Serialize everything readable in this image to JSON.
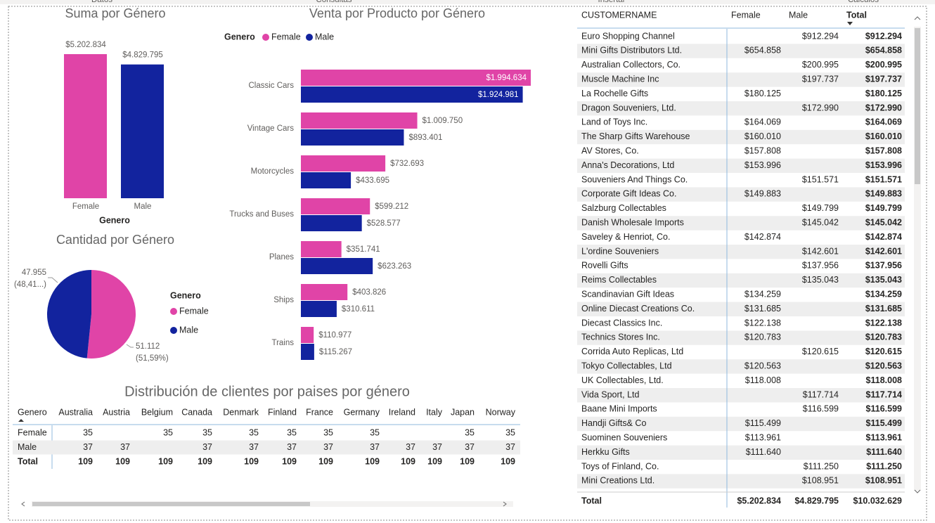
{
  "tabs": [
    "Datos",
    "Consultas",
    "Insertar",
    "Cálculos"
  ],
  "chart_data": [
    {
      "type": "bar",
      "title": "Suma por Género",
      "xlabel": "Genero",
      "categories": [
        "Female",
        "Male"
      ],
      "values": [
        5202834,
        4829795
      ],
      "value_labels": [
        "$5.202.834",
        "$4.829.795"
      ],
      "colors": [
        "#e044a7",
        "#12239e"
      ]
    },
    {
      "type": "pie",
      "title": "Cantidad por Género",
      "legend_title": "Genero",
      "categories": [
        "Female",
        "Male"
      ],
      "values": [
        51112,
        47955
      ],
      "value_labels": [
        "51.112",
        "47.955"
      ],
      "percent_labels": [
        "(51,59%)",
        "(48,41...)"
      ],
      "colors": [
        "#e044a7",
        "#12239e"
      ]
    },
    {
      "type": "hbar",
      "title": "Venta por Producto por Género",
      "legend_title": "Genero",
      "categories": [
        "Classic Cars",
        "Vintage Cars",
        "Motorcycles",
        "Trucks and Buses",
        "Planes",
        "Ships",
        "Trains"
      ],
      "series": [
        {
          "name": "Female",
          "color": "#e044a7",
          "values": [
            1994634,
            1009750,
            732693,
            599212,
            351741,
            403826,
            110977
          ],
          "value_labels": [
            "$1.994.634",
            "$1.009.750",
            "$732.693",
            "$599.212",
            "$351.741",
            "$403.826",
            "$110.977"
          ]
        },
        {
          "name": "Male",
          "color": "#12239e",
          "values": [
            1924981,
            893401,
            433695,
            528577,
            623263,
            310611,
            115267
          ],
          "value_labels": [
            "$1.924.981",
            "$893.401",
            "$433.695",
            "$528.577",
            "$623.263",
            "$310.611",
            "$115.267"
          ]
        }
      ]
    }
  ],
  "country_matrix": {
    "title": "Distribución de clientes por paises por género",
    "columns": [
      "Genero",
      "Australia",
      "Austria",
      "Belgium",
      "Canada",
      "Denmark",
      "Finland",
      "France",
      "Germany",
      "Ireland",
      "Italy",
      "Japan",
      "Norway"
    ],
    "rows": [
      {
        "label": "Female",
        "values": [
          35,
          null,
          35,
          35,
          35,
          35,
          35,
          35,
          null,
          null,
          35,
          35
        ]
      },
      {
        "label": "Male",
        "values": [
          37,
          37,
          null,
          37,
          37,
          37,
          37,
          37,
          37,
          37,
          37,
          37
        ]
      },
      {
        "label": "Total",
        "values": [
          109,
          109,
          109,
          109,
          109,
          109,
          109,
          109,
          109,
          109,
          109,
          109
        ]
      }
    ]
  },
  "customer_table": {
    "columns": [
      "CUSTOMERNAME",
      "Female",
      "Male",
      "Total"
    ],
    "rows": [
      [
        "Euro Shopping Channel",
        null,
        "$912.294",
        "$912.294"
      ],
      [
        "Mini Gifts Distributors Ltd.",
        "$654.858",
        null,
        "$654.858"
      ],
      [
        "Australian Collectors, Co.",
        null,
        "$200.995",
        "$200.995"
      ],
      [
        "Muscle Machine Inc",
        null,
        "$197.737",
        "$197.737"
      ],
      [
        "La Rochelle Gifts",
        "$180.125",
        null,
        "$180.125"
      ],
      [
        "Dragon Souveniers, Ltd.",
        null,
        "$172.990",
        "$172.990"
      ],
      [
        "Land of Toys Inc.",
        "$164.069",
        null,
        "$164.069"
      ],
      [
        "The Sharp Gifts Warehouse",
        "$160.010",
        null,
        "$160.010"
      ],
      [
        "AV Stores, Co.",
        "$157.808",
        null,
        "$157.808"
      ],
      [
        "Anna's Decorations, Ltd",
        "$153.996",
        null,
        "$153.996"
      ],
      [
        "Souveniers And Things Co.",
        null,
        "$151.571",
        "$151.571"
      ],
      [
        "Corporate Gift Ideas Co.",
        "$149.883",
        null,
        "$149.883"
      ],
      [
        "Salzburg Collectables",
        null,
        "$149.799",
        "$149.799"
      ],
      [
        "Danish Wholesale Imports",
        null,
        "$145.042",
        "$145.042"
      ],
      [
        "Saveley & Henriot, Co.",
        "$142.874",
        null,
        "$142.874"
      ],
      [
        "L'ordine Souveniers",
        null,
        "$142.601",
        "$142.601"
      ],
      [
        "Rovelli Gifts",
        null,
        "$137.956",
        "$137.956"
      ],
      [
        "Reims Collectables",
        null,
        "$135.043",
        "$135.043"
      ],
      [
        "Scandinavian Gift Ideas",
        "$134.259",
        null,
        "$134.259"
      ],
      [
        "Online Diecast Creations Co.",
        "$131.685",
        null,
        "$131.685"
      ],
      [
        "Diecast Classics Inc.",
        "$122.138",
        null,
        "$122.138"
      ],
      [
        "Technics Stores Inc.",
        "$120.783",
        null,
        "$120.783"
      ],
      [
        "Corrida Auto Replicas, Ltd",
        null,
        "$120.615",
        "$120.615"
      ],
      [
        "Tokyo Collectables, Ltd",
        "$120.563",
        null,
        "$120.563"
      ],
      [
        "UK Collectables, Ltd.",
        "$118.008",
        null,
        "$118.008"
      ],
      [
        "Vida Sport, Ltd",
        null,
        "$117.714",
        "$117.714"
      ],
      [
        "Baane Mini Imports",
        null,
        "$116.599",
        "$116.599"
      ],
      [
        "Handji Gifts& Co",
        "$115.499",
        null,
        "$115.499"
      ],
      [
        "Suominen Souveniers",
        "$113.961",
        null,
        "$113.961"
      ],
      [
        "Herkku Gifts",
        "$111.640",
        null,
        "$111.640"
      ],
      [
        "Toys of Finland, Co.",
        null,
        "$111.250",
        "$111.250"
      ],
      [
        "Mini Creations Ltd.",
        null,
        "$108.951",
        "$108.951"
      ]
    ],
    "total": [
      "Total",
      "$5.202.834",
      "$4.829.795",
      "$10.032.629"
    ]
  }
}
